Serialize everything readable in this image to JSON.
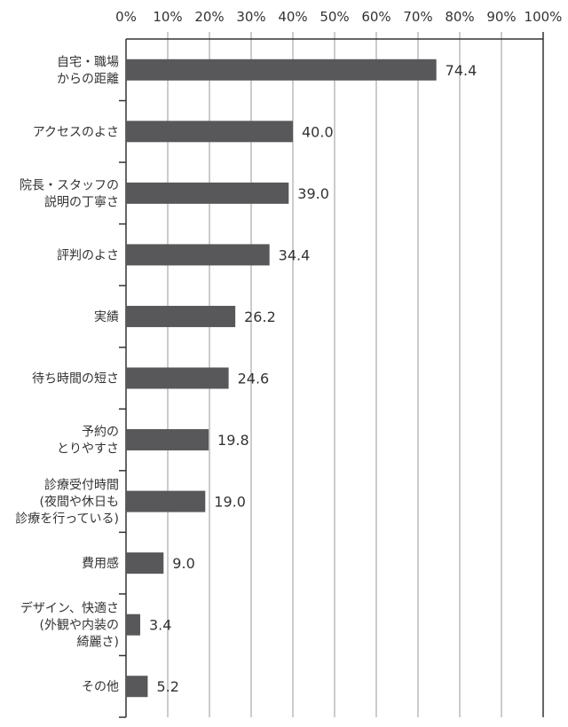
{
  "chart_data": {
    "type": "bar",
    "orientation": "horizontal",
    "xlim": [
      0,
      100
    ],
    "x_ticks": [
      "0%",
      "10%",
      "20%",
      "30%",
      "40%",
      "50%",
      "60%",
      "70%",
      "80%",
      "90%",
      "100%"
    ],
    "grid": true,
    "bar_color": "#58585a",
    "categories": [
      [
        "自宅・職場",
        "からの距離"
      ],
      [
        "アクセスのよさ"
      ],
      [
        "院長・スタッフの",
        "説明の丁寧さ"
      ],
      [
        "評判のよさ"
      ],
      [
        "実績"
      ],
      [
        "待ち時間の短さ"
      ],
      [
        "予約の",
        "とりやすさ"
      ],
      [
        "診療受付時間",
        "(夜間や休日も",
        "診療を行っている)"
      ],
      [
        "費用感"
      ],
      [
        "デザイン、快適さ",
        "(外観や内装の",
        "綺麗さ)"
      ],
      [
        "その他"
      ]
    ],
    "values": [
      74.4,
      40.0,
      39.0,
      34.4,
      26.2,
      24.6,
      19.8,
      19.0,
      9.0,
      3.4,
      5.2
    ],
    "value_labels": [
      "74.4",
      "40.0",
      "39.0",
      "34.4",
      "26.2",
      "24.6",
      "19.8",
      "19.0",
      "9.0",
      "3.4",
      "5.2"
    ]
  }
}
